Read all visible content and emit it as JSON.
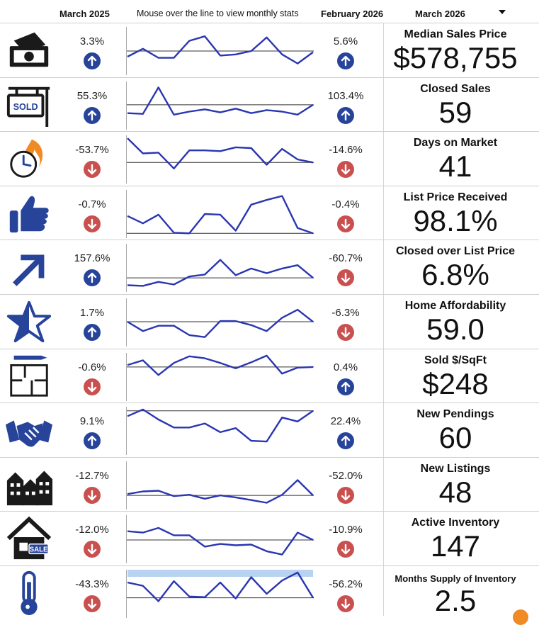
{
  "header": {
    "left_period": "March 2025",
    "hint": "Mouse over the line to view monthly stats",
    "right_period": "February 2026",
    "current_period": "March 2026"
  },
  "colors": {
    "line": "#2a36b1",
    "up": "#27449a",
    "down": "#c9504f",
    "highlight": "#b8d3f0"
  },
  "chart_data": {
    "type": "line",
    "metrics": [
      {
        "name": "Median Sales Price",
        "value": "$578,755",
        "yoy": "3.3%",
        "yoy_dir": "up",
        "mom": "5.6%",
        "mom_dir": "up",
        "icon": "money-icon",
        "series": [
          45,
          38,
          46,
          46,
          31,
          27,
          44,
          43,
          40,
          28,
          43,
          51,
          41
        ],
        "baseline": 40,
        "ylim": [
          20,
          60
        ]
      },
      {
        "name": "Closed Sales",
        "value": "59",
        "yoy": "55.3%",
        "yoy_dir": "up",
        "mom": "103.4%",
        "mom_dir": "up",
        "icon": "sold-sign-icon",
        "series": [
          40,
          41,
          6,
          42,
          38,
          35,
          39,
          34,
          40,
          36,
          38,
          42,
          29
        ],
        "baseline": 29,
        "ylim": [
          0,
          60
        ]
      },
      {
        "name": "Days on Market",
        "value": "41",
        "yoy": "-53.7%",
        "yoy_dir": "down",
        "mom": "-14.6%",
        "mom_dir": "down",
        "icon": "clock-fire-icon",
        "series": [
          2,
          22,
          21,
          42,
          18,
          18,
          19,
          14,
          15,
          37,
          16,
          30,
          34
        ],
        "baseline": 34,
        "ylim": [
          0,
          60
        ]
      },
      {
        "name": "List Price Received",
        "value": "98.1%",
        "yoy": "-0.7%",
        "yoy_dir": "down",
        "mom": "-0.4%",
        "mom_dir": "down",
        "icon": "thumbs-up-icon",
        "series": [
          37,
          48,
          35,
          62,
          63,
          34,
          35,
          59,
          20,
          13,
          7,
          55,
          63
        ],
        "baseline": 63,
        "ylim": [
          0,
          68
        ]
      },
      {
        "name": "Closed over List Price",
        "value": "6.8%",
        "yoy": "157.6%",
        "yoy_dir": "up",
        "mom": "-60.7%",
        "mom_dir": "down",
        "icon": "arrow-up-right-icon",
        "series": [
          60,
          61,
          55,
          59,
          47,
          44,
          22,
          45,
          35,
          42,
          35,
          30,
          49
        ],
        "baseline": 49,
        "ylim": [
          0,
          68
        ]
      },
      {
        "name": "Home Affordability",
        "value": "59.0",
        "yoy": "1.7%",
        "yoy_dir": "up",
        "mom": "-6.3%",
        "mom_dir": "down",
        "icon": "star-icon",
        "series": [
          33,
          47,
          39,
          39,
          53,
          56,
          32,
          32,
          38,
          47,
          27,
          15,
          33
        ],
        "baseline": 33,
        "ylim": [
          0,
          68
        ]
      },
      {
        "name": "Sold $/SqFt",
        "value": "$248",
        "yoy": "-0.6%",
        "yoy_dir": "down",
        "mom": "0.4%",
        "mom_dir": "up",
        "icon": "floorplan-icon",
        "series": [
          16,
          9,
          31,
          13,
          3,
          6,
          13,
          21,
          12,
          2,
          29,
          20,
          19
        ],
        "baseline": 19,
        "ylim": [
          0,
          68
        ]
      },
      {
        "name": "New Pendings",
        "value": "60",
        "yoy": "9.1%",
        "yoy_dir": "up",
        "mom": "22.4%",
        "mom_dir": "up",
        "icon": "handshake-icon",
        "series": [
          12,
          2,
          17,
          29,
          29,
          23,
          36,
          30,
          49,
          50,
          14,
          20,
          4
        ],
        "baseline": 4,
        "ylim": [
          0,
          68
        ]
      },
      {
        "name": "New Listings",
        "value": "48",
        "yoy": "-12.7%",
        "yoy_dir": "down",
        "mom": "-52.0%",
        "mom_dir": "down",
        "icon": "buildings-icon",
        "series": [
          47,
          43,
          42,
          50,
          48,
          54,
          49,
          52,
          56,
          60,
          48,
          26,
          49
        ],
        "baseline": 49,
        "ylim": [
          0,
          68
        ]
      },
      {
        "name": "Active Inventory",
        "value": "147",
        "yoy": "-12.0%",
        "yoy_dir": "down",
        "mom": "-10.9%",
        "mom_dir": "down",
        "icon": "house-sale-icon",
        "series": [
          22,
          24,
          17,
          28,
          28,
          45,
          41,
          43,
          42,
          52,
          57,
          24,
          35
        ],
        "baseline": 35,
        "ylim": [
          0,
          68
        ]
      },
      {
        "name": "Months Supply of Inventory",
        "value": "2.5",
        "yoy": "-43.3%",
        "yoy_dir": "down",
        "mom": "-56.2%",
        "mom_dir": "down",
        "icon": "thermometer-icon",
        "series": [
          17,
          22,
          45,
          15,
          38,
          39,
          17,
          41,
          9,
          34,
          14,
          2,
          40
        ],
        "baseline": 40,
        "ylim": [
          0,
          68
        ],
        "highlight": [
          0,
          12
        ]
      }
    ]
  }
}
